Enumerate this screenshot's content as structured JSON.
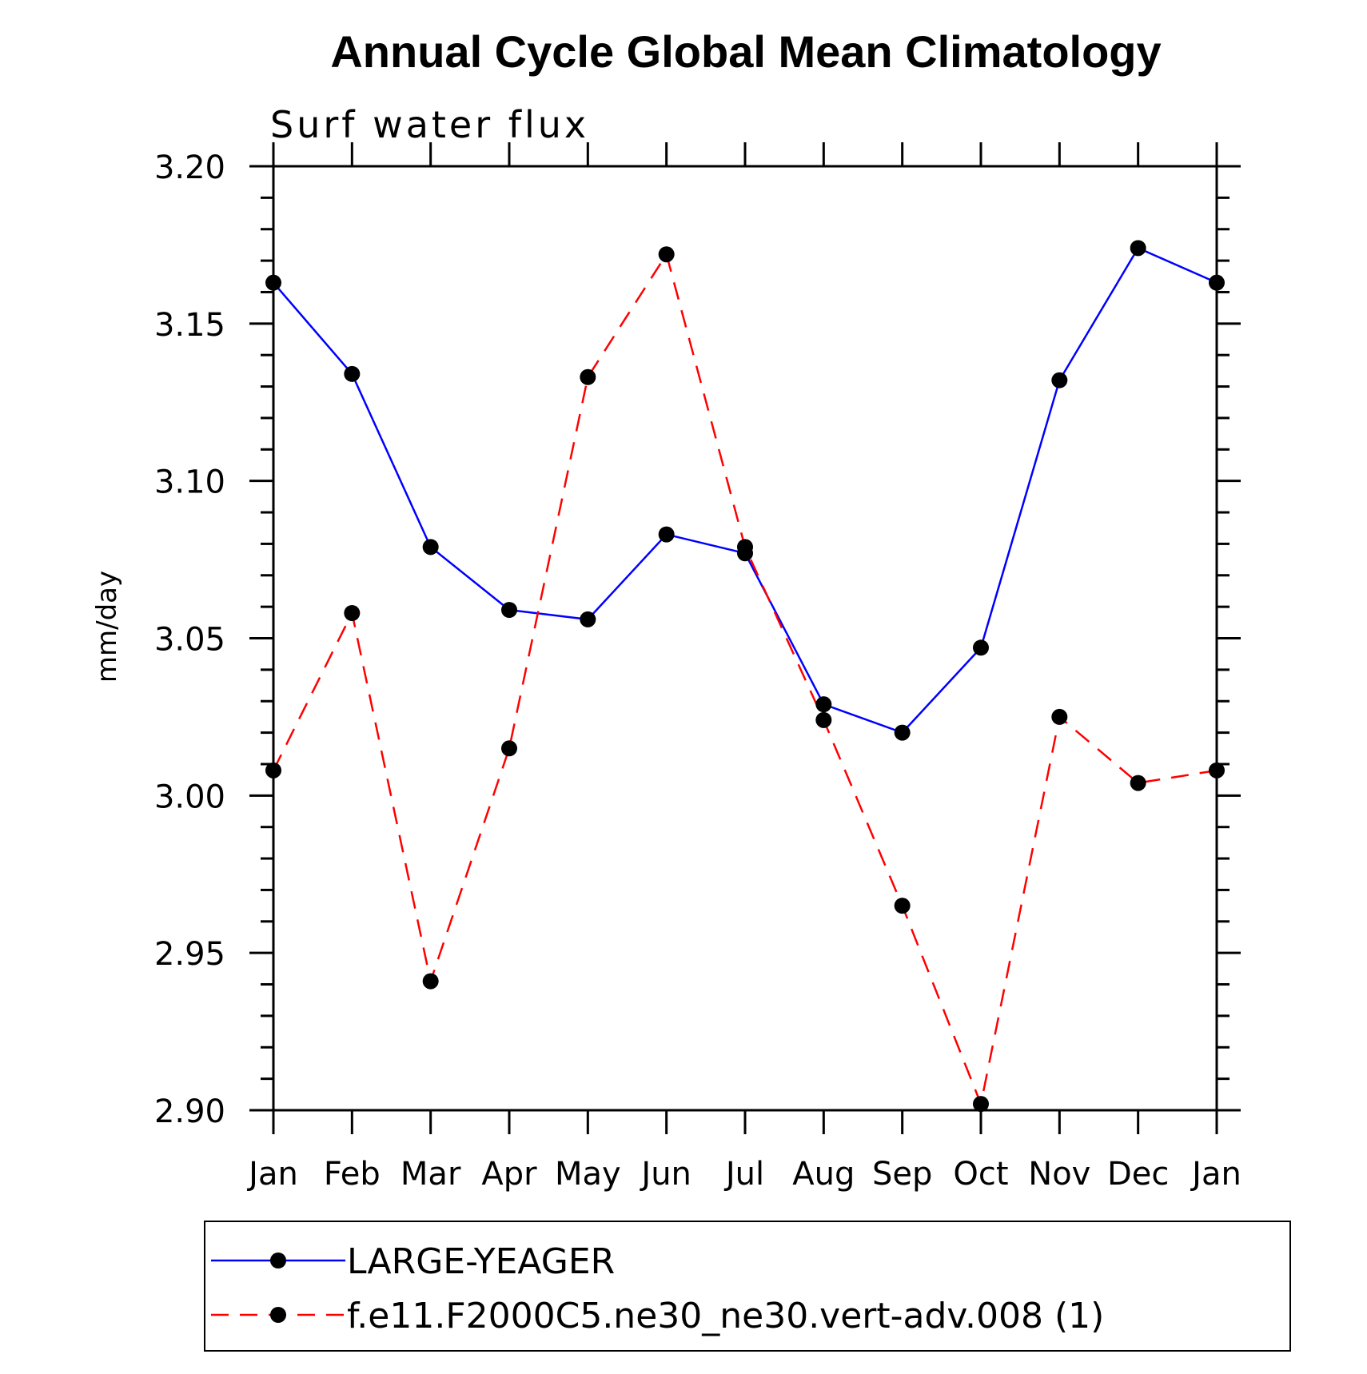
{
  "chart_data": {
    "type": "line",
    "title": "Annual Cycle Global Mean Climatology",
    "subtitle": "Surf water flux",
    "ylabel": "mm/day",
    "xlabel": "",
    "categories": [
      "Jan",
      "Feb",
      "Mar",
      "Apr",
      "May",
      "Jun",
      "Jul",
      "Aug",
      "Sep",
      "Oct",
      "Nov",
      "Dec",
      "Jan"
    ],
    "ylim": [
      2.9,
      3.2
    ],
    "yticks": [
      "2.90",
      "2.95",
      "3.00",
      "3.05",
      "3.10",
      "3.15",
      "3.20"
    ],
    "ytick_values": [
      2.9,
      2.95,
      3.0,
      3.05,
      3.1,
      3.15,
      3.2
    ],
    "legend_position": "bottom",
    "series": [
      {
        "name": "LARGE-YEAGER",
        "color": "#0000ff",
        "dash": "solid",
        "values": [
          3.163,
          3.134,
          3.079,
          3.059,
          3.056,
          3.083,
          3.077,
          3.029,
          3.02,
          3.047,
          3.132,
          3.174,
          3.163
        ]
      },
      {
        "name": "f.e11.F2000C5.ne30_ne30.vert-adv.008 (1)",
        "color": "#ff0000",
        "dash": "dashed",
        "values": [
          3.008,
          3.058,
          2.941,
          3.015,
          3.133,
          3.172,
          3.079,
          3.024,
          2.965,
          2.902,
          3.025,
          3.004,
          3.008
        ]
      }
    ]
  }
}
